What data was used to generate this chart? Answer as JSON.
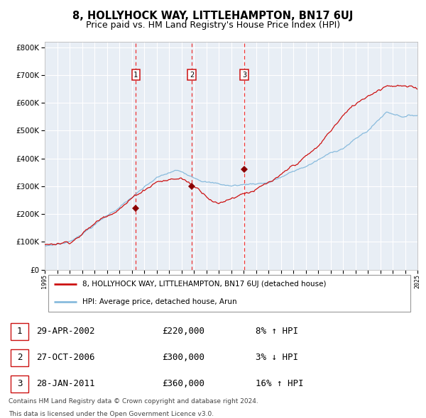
{
  "title": "8, HOLLYHOCK WAY, LITTLEHAMPTON, BN17 6UJ",
  "subtitle": "Price paid vs. HM Land Registry's House Price Index (HPI)",
  "title_fontsize": 10.5,
  "subtitle_fontsize": 9,
  "background_color": "#ffffff",
  "plot_background_color": "#e8eef5",
  "grid_color": "#ffffff",
  "hpi_line_color": "#88bbdd",
  "price_line_color": "#cc1111",
  "marker_color": "#8b0000",
  "vline_color": "#ee3333",
  "x_start_year": 1995,
  "x_end_year": 2025,
  "ylim": [
    0,
    820000
  ],
  "yticks": [
    0,
    100000,
    200000,
    300000,
    400000,
    500000,
    600000,
    700000,
    800000
  ],
  "sale_points": [
    {
      "label": "1",
      "year": 2002.33,
      "price": 220000,
      "date": "29-APR-2002",
      "price_str": "£220,000",
      "pct": "8%",
      "dir": "↑"
    },
    {
      "label": "2",
      "year": 2006.83,
      "price": 300000,
      "date": "27-OCT-2006",
      "price_str": "£300,000",
      "pct": "3%",
      "dir": "↓"
    },
    {
      "label": "3",
      "year": 2011.07,
      "price": 360000,
      "date": "28-JAN-2011",
      "price_str": "£360,000",
      "pct": "16%",
      "dir": "↑"
    }
  ],
  "legend_label_price": "8, HOLLYHOCK WAY, LITTLEHAMPTON, BN17 6UJ (detached house)",
  "legend_label_hpi": "HPI: Average price, detached house, Arun",
  "footer1": "Contains HM Land Registry data © Crown copyright and database right 2024.",
  "footer2": "This data is licensed under the Open Government Licence v3.0."
}
